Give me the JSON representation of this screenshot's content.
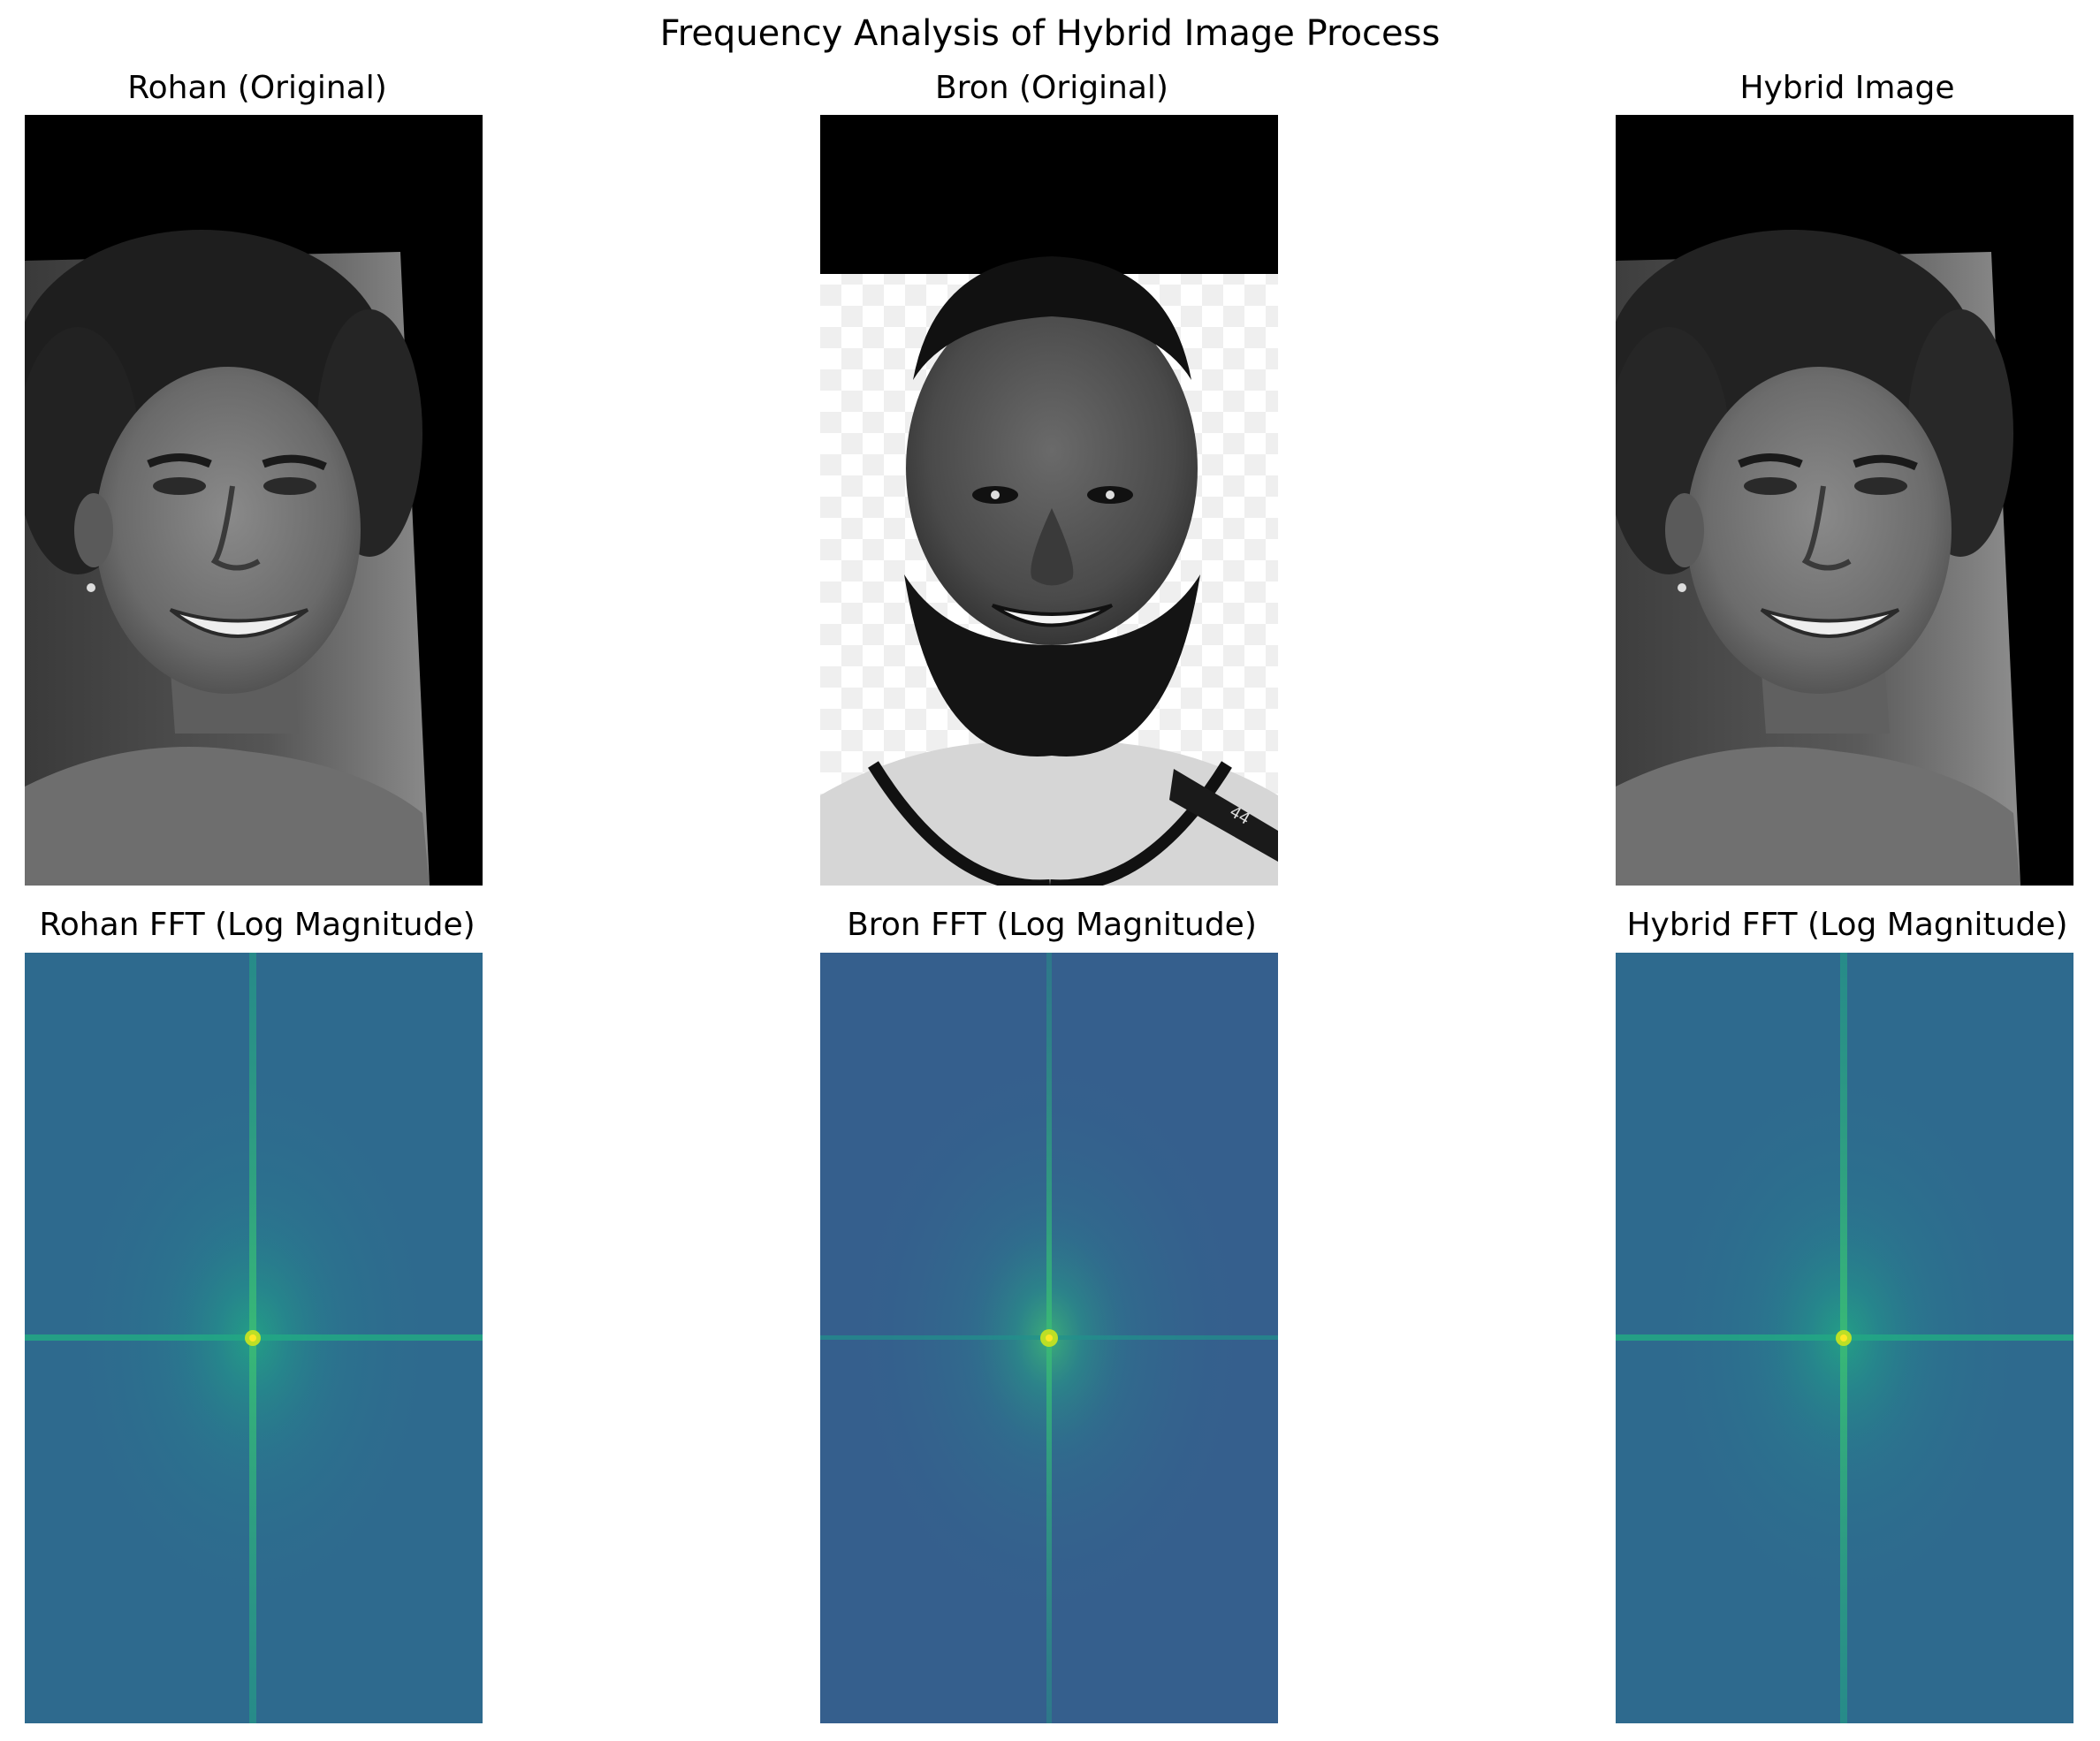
{
  "figure": {
    "title": "Frequency Analysis of Hybrid Image Process"
  },
  "panels": [
    {
      "title": "Rohan (Original)",
      "kind": "photo",
      "subject": "young man with curly hair smiling, grayscale, rotated with black borders",
      "colormap": "gray"
    },
    {
      "title": "Bron (Original)",
      "kind": "photo",
      "subject": "bearded man smiling in basketball jersey, grayscale, checkered transparent background with black top band",
      "jersey_number": "44",
      "colormap": "gray"
    },
    {
      "title": "Hybrid Image",
      "kind": "photo",
      "subject": "hybrid of the two faces, appears as young man with curly hair",
      "colormap": "gray"
    },
    {
      "title": "Rohan FFT (Log Magnitude)",
      "kind": "fft",
      "colormap": "viridis"
    },
    {
      "title": "Bron FFT (Log Magnitude)",
      "kind": "fft",
      "colormap": "viridis"
    },
    {
      "title": "Hybrid FFT (Log Magnitude)",
      "kind": "fft",
      "colormap": "viridis"
    }
  ],
  "colors": {
    "viridis_low": "#2e6a8e",
    "viridis_mid": "#22a884",
    "viridis_high": "#bddf26",
    "gray_dark": "#000000",
    "gray_light": "#f2f2f2"
  }
}
